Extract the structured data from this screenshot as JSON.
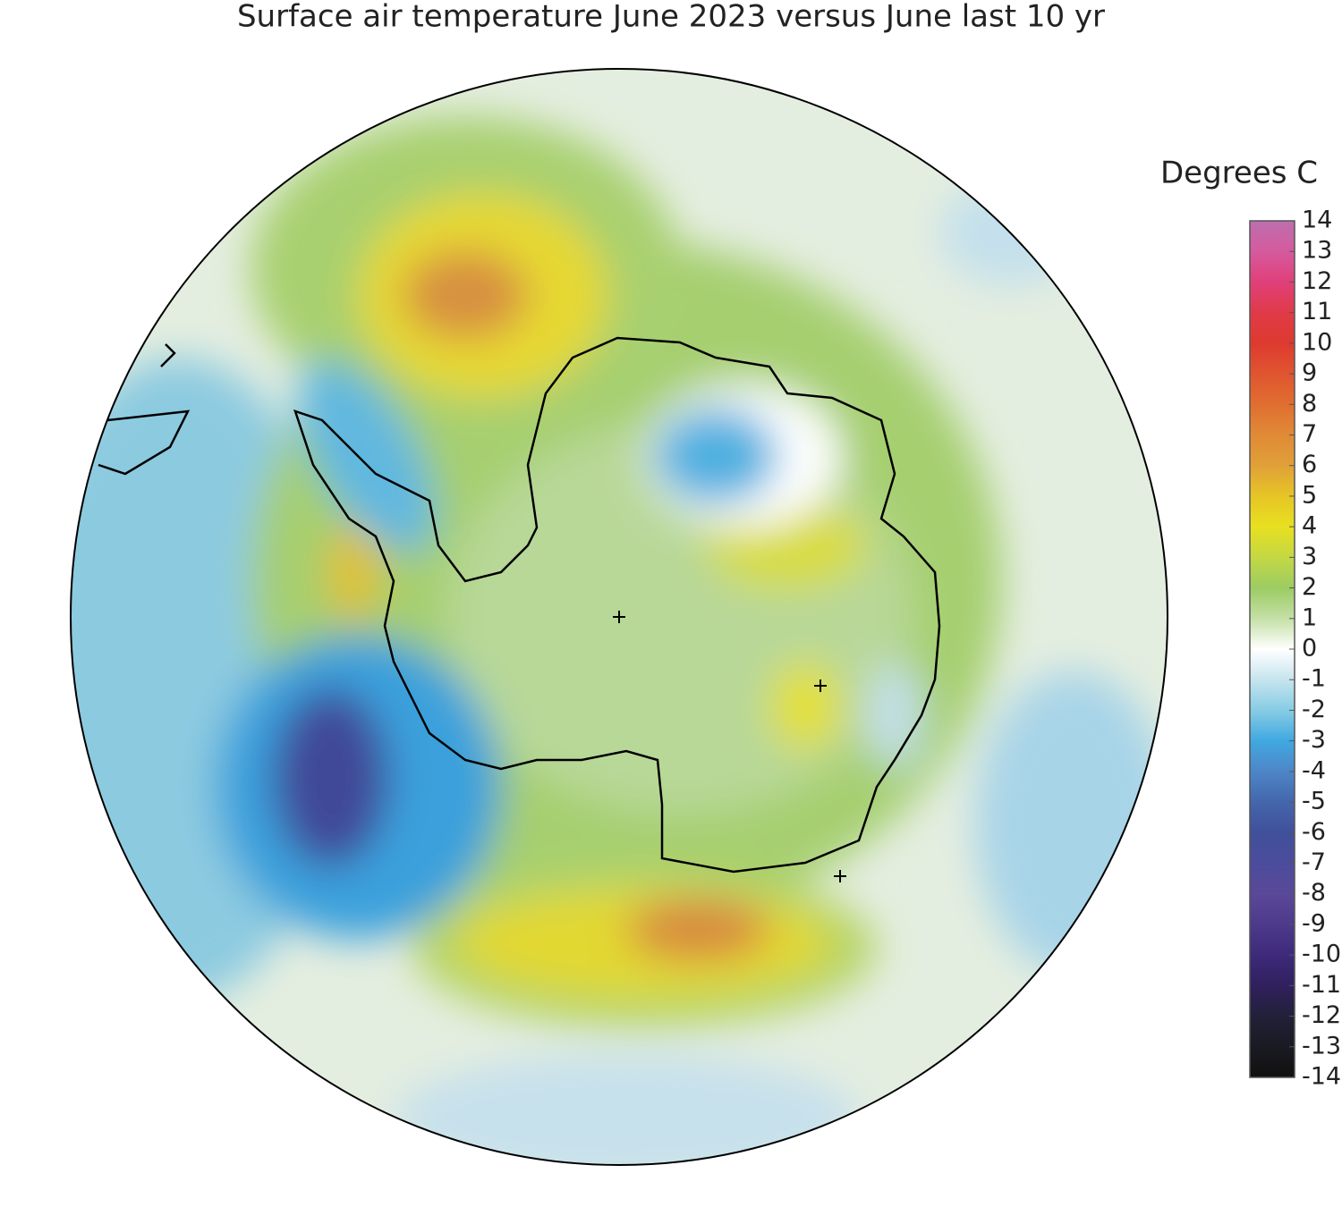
{
  "title": "Surface air temperature June 2023 versus June last 10 yr",
  "colorbar": {
    "label": "Degrees C",
    "ticks": [
      14,
      13,
      12,
      11,
      10,
      9,
      8,
      7,
      6,
      5,
      4,
      3,
      2,
      1,
      0,
      -1,
      -2,
      -3,
      -4,
      -5,
      -6,
      -7,
      -8,
      -9,
      -10,
      -11,
      -12,
      -13,
      -14
    ],
    "colors": [
      "#bd6fae",
      "#d55a9e",
      "#e0407a",
      "#e03a48",
      "#de3a30",
      "#e05530",
      "#e06e30",
      "#e08a36",
      "#e0a038",
      "#e6c526",
      "#e8e020",
      "#c4d844",
      "#9ccc62",
      "#c4e0a6",
      "#ffffff",
      "#c6e4ee",
      "#86cce4",
      "#40a8e0",
      "#4e86c8",
      "#4466ac",
      "#40509a",
      "#4c4c9c",
      "#5a4898",
      "#4e3a8a",
      "#3e2a7a",
      "#30205e",
      "#222038",
      "#1a1a22",
      "#111111"
    ]
  }
}
